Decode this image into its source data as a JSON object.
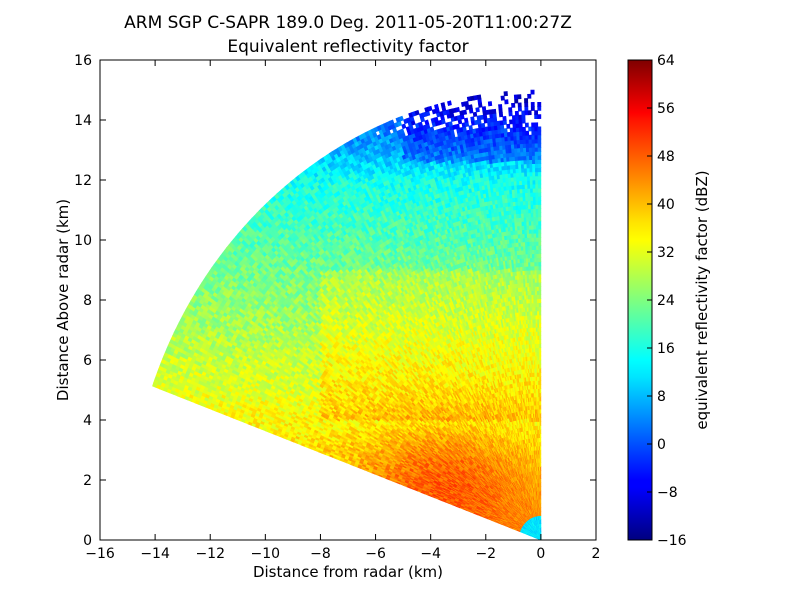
{
  "chart_data": {
    "type": "heatmap",
    "title": "ARM SGP C-SAPR 189.0 Deg. 2011-05-20T11:00:27Z",
    "subtitle": "Equivalent reflectivity factor",
    "xlabel": "Distance from radar (km)",
    "ylabel": "Distance Above radar  (km)",
    "xlim": [
      -16,
      2
    ],
    "ylim": [
      0,
      16
    ],
    "x_ticks": [
      "−16",
      "−14",
      "−12",
      "−10",
      "−8",
      "−6",
      "−4",
      "−2",
      "0",
      "2"
    ],
    "y_ticks": [
      "0",
      "2",
      "4",
      "6",
      "8",
      "10",
      "12",
      "14",
      "16"
    ],
    "grid": false,
    "colorbar": {
      "label": "equivalent reflectivity factor (dBZ)",
      "vmin": -16,
      "vmax": 64,
      "colormap": "jet",
      "ticks": [
        "−16",
        "−8",
        "0",
        "8",
        "16",
        "24",
        "32",
        "40",
        "48",
        "56",
        "64"
      ]
    },
    "field": {
      "type": "RHI sector",
      "azimuth_deg": 189.0,
      "max_range_km": 15.0,
      "elevation_range_deg": [
        20,
        90
      ],
      "approx_regions": [
        {
          "zone": "near-surface, x -7 to 0, y 0-4",
          "value_dbz": 46
        },
        {
          "zone": "mid-level, y 4-9",
          "value_dbz": 26
        },
        {
          "zone": "upper-level, y 9-12",
          "value_dbz": 18
        },
        {
          "zone": "cloud top, y 12-14",
          "value_dbz": 0
        },
        {
          "zone": "cloud edge, y 14-15",
          "value_dbz": -12
        }
      ]
    }
  }
}
